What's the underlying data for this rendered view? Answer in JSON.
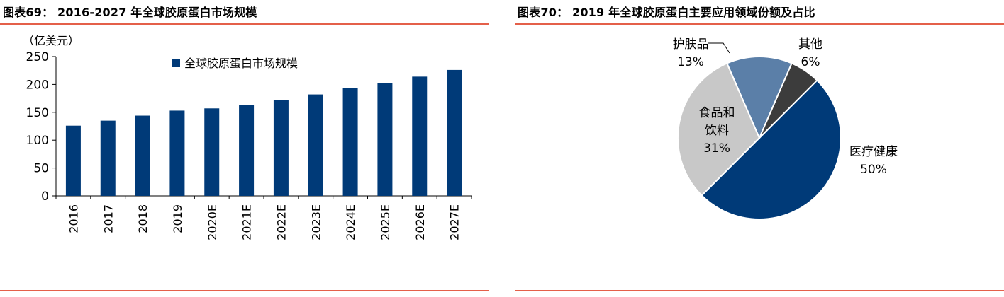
{
  "charts": [
    {
      "title": "图表69： 2016-2027 年全球胶原蛋白市场规模",
      "chart_data": {
        "type": "bar",
        "unit_label": "（亿美元）",
        "categories": [
          "2016",
          "2017",
          "2018",
          "2019",
          "2020E",
          "2021E",
          "2022E",
          "2023E",
          "2024E",
          "2025E",
          "2026E",
          "2027E"
        ],
        "series": [
          {
            "name": "全球胶原蛋白市场规模",
            "values": [
              126,
              135,
              144,
              153,
              157,
              163,
              172,
              182,
              193,
              203,
              214,
              226
            ]
          }
        ],
        "ylim": [
          0,
          250
        ],
        "yticks": [
          0,
          50,
          100,
          150,
          200,
          250
        ],
        "grid": false,
        "legend": "top-center",
        "colors": {
          "bar": "#003A78",
          "axis": "#000000"
        }
      }
    },
    {
      "title": "图表70： 2019 年全球胶原蛋白主要应用领域份额及占比",
      "chart_data": {
        "type": "pie",
        "slices": [
          {
            "label": "医疗健康",
            "value": 50,
            "text": "50%",
            "color": "#003A78"
          },
          {
            "label": "食品和饮料",
            "label_lines": [
              "食品和",
              "饮料"
            ],
            "value": 31,
            "text": "31%",
            "color": "#C8C8C8"
          },
          {
            "label": "护肤品",
            "value": 13,
            "text": "13%",
            "color": "#5B7FA8"
          },
          {
            "label": "其他",
            "value": 6,
            "text": "6%",
            "color": "#3C3C3C"
          }
        ],
        "legend": "none"
      }
    }
  ]
}
